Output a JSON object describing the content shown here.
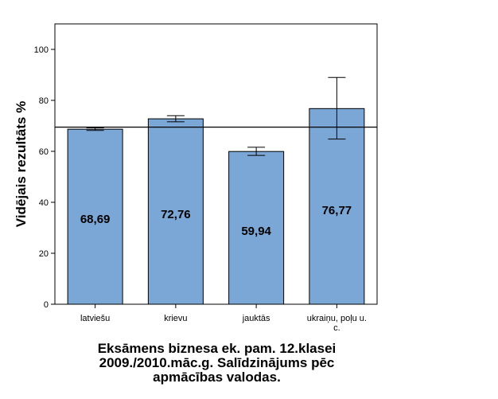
{
  "chart_data": {
    "type": "bar",
    "ylabel": "Vidējais rezultāts %",
    "categories": [
      "latviešu",
      "krievu",
      "jauktās",
      "ukraiņu, poļu u. c."
    ],
    "category_lines": [
      [
        "latviešu"
      ],
      [
        "krievu"
      ],
      [
        "jauktās"
      ],
      [
        "ukraiņu, poļu u.",
        "c."
      ]
    ],
    "values": [
      68.69,
      72.76,
      59.94,
      76.77
    ],
    "value_labels": [
      "68,69",
      "72,76",
      "59,94",
      "76,77"
    ],
    "error_bars": [
      [
        68.2,
        69.2
      ],
      [
        71.6,
        74.0
      ],
      [
        58.4,
        61.6
      ],
      [
        64.8,
        89.0
      ]
    ],
    "reference_line": 69.5,
    "ylim": [
      0,
      110
    ],
    "yticks": [
      0,
      20,
      40,
      60,
      80,
      100
    ],
    "grid": false,
    "bar_color": "#7ba7d6",
    "bar_stroke": "#000000"
  },
  "caption_lines": [
    "Eksāmens biznesa ek. pam. 12.klasei",
    "2009./2010.māc.g. Salīdzinājums pēc",
    "apmācības valodas."
  ]
}
